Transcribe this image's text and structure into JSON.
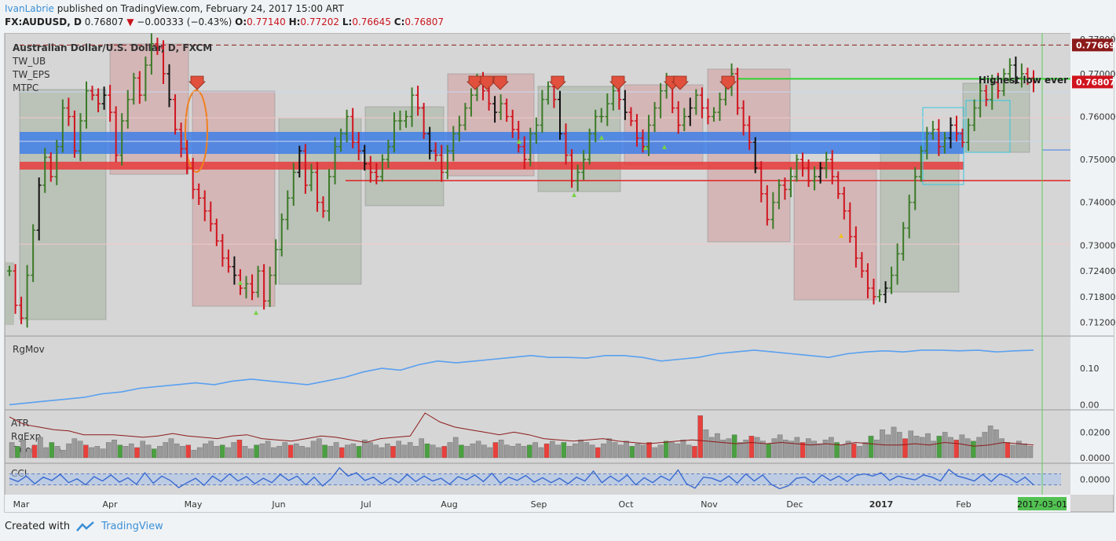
{
  "header": {
    "author": "IvanLabrie",
    "published_text": "published on TradingView.com, February 24, 2017 15:00 ART",
    "symbol": "FX:AUDUSD, D",
    "last": "0.76807",
    "change": "−0.00333 (−0.43%)",
    "ohlc": [
      {
        "label": "O:",
        "value": "0.77140"
      },
      {
        "label": "H:",
        "value": "0.77202"
      },
      {
        "label": "L:",
        "value": "0.76645"
      },
      {
        "label": "C:",
        "value": "0.76807"
      }
    ]
  },
  "footer": {
    "created_with": "Created with",
    "brand": "TradingView"
  },
  "colors": {
    "up": "#3c7a28",
    "down": "#d0141e",
    "dark": "#111111",
    "accent": "#3b8fd6",
    "line": "#5aa0f0"
  },
  "chart_data": [
    {
      "type": "line",
      "title": "Australian Dollar/U.S. Dollar, D, FXCM",
      "indicators": [
        "TW_UB",
        "TW_EPS",
        "MTPC"
      ],
      "annotation": "Highest low ever",
      "y_ticks": [
        "0.77800",
        "0.77000",
        "0.76000",
        "0.75000",
        "0.74000",
        "0.73000",
        "0.72400",
        "0.71800",
        "0.71200"
      ],
      "ylim": [
        0.709,
        0.7795
      ],
      "price_labels": [
        {
          "value": 0.77669,
          "text": "0.77669",
          "color": "#8c1a1a"
        },
        {
          "value": 0.76807,
          "text": "0.76807",
          "color": "#d0141e"
        }
      ],
      "x_labels": [
        "Mar",
        "Apr",
        "May",
        "Jun",
        "Jul",
        "Aug",
        "Sep",
        "Oct",
        "Nov",
        "Dec",
        "2017",
        "Feb"
      ],
      "cursor_date": "2017-03-01",
      "series": [
        {
          "values": [
            0.724,
            0.716,
            0.713,
            0.723,
            0.7335,
            0.744,
            0.7505,
            0.746,
            0.753,
            0.762,
            0.76,
            0.752,
            0.759,
            0.766,
            0.765,
            0.763,
            0.765,
            0.761,
            0.751,
            0.759,
            0.764,
            0.769,
            0.765,
            0.772,
            0.777,
            0.776,
            0.77,
            0.764,
            0.757,
            0.7525,
            0.748,
            0.743,
            0.741,
            0.738,
            0.735,
            0.731,
            0.727,
            0.725,
            0.723,
            0.72,
            0.721,
            0.719,
            0.724,
            0.717,
            0.723,
            0.729,
            0.736,
            0.741,
            0.747,
            0.752,
            0.744,
            0.747,
            0.74,
            0.738,
            0.746,
            0.753,
            0.756,
            0.76,
            0.754,
            0.752,
            0.749,
            0.747,
            0.746,
            0.75,
            0.753,
            0.759,
            0.759,
            0.76,
            0.765,
            0.762,
            0.756,
            0.752,
            0.751,
            0.747,
            0.752,
            0.756,
            0.758,
            0.762,
            0.765,
            0.768,
            0.766,
            0.763,
            0.761,
            0.763,
            0.76,
            0.757,
            0.753,
            0.75,
            0.756,
            0.758,
            0.764,
            0.767,
            0.764,
            0.756,
            0.751,
            0.745,
            0.747,
            0.75,
            0.756,
            0.76,
            0.76,
            0.763,
            0.766,
            0.764,
            0.761,
            0.759,
            0.755,
            0.753,
            0.758,
            0.762,
            0.766,
            0.768,
            0.762,
            0.758,
            0.76,
            0.762,
            0.765,
            0.762,
            0.76,
            0.761,
            0.764,
            0.767,
            0.77,
            0.762,
            0.758,
            0.754,
            0.748,
            0.742,
            0.736,
            0.74,
            0.744,
            0.743,
            0.746,
            0.75,
            0.748,
            0.745,
            0.746,
            0.748,
            0.75,
            0.746,
            0.742,
            0.738,
            0.732,
            0.727,
            0.724,
            0.72,
            0.718,
            0.7185,
            0.72,
            0.723,
            0.728,
            0.734,
            0.74,
            0.746,
            0.752,
            0.756,
            0.757,
            0.753,
            0.755,
            0.758,
            0.756,
            0.754,
            0.758,
            0.762,
            0.766,
            0.764,
            0.768,
            0.766,
            0.77,
            0.772,
            0.769,
            0.77,
            0.769,
            0.7681
          ]
        }
      ]
    },
    {
      "type": "line",
      "title": "RgMov",
      "y_ticks": [
        "0.10",
        "0.00"
      ],
      "ylim": [
        -0.01,
        0.18
      ],
      "series": [
        {
          "values": [
            0.0,
            0.005,
            0.01,
            0.015,
            0.02,
            0.03,
            0.035,
            0.045,
            0.05,
            0.055,
            0.06,
            0.055,
            0.065,
            0.07,
            0.065,
            0.06,
            0.055,
            0.065,
            0.075,
            0.09,
            0.1,
            0.095,
            0.11,
            0.12,
            0.115,
            0.12,
            0.125,
            0.13,
            0.135,
            0.13,
            0.13,
            0.128,
            0.135,
            0.135,
            0.13,
            0.12,
            0.125,
            0.13,
            0.14,
            0.145,
            0.15,
            0.145,
            0.14,
            0.135,
            0.13,
            0.14,
            0.145,
            0.148,
            0.145,
            0.15,
            0.15,
            0.148,
            0.15,
            0.145,
            0.148,
            0.15
          ]
        }
      ]
    },
    {
      "type": "bar",
      "title": "ATR",
      "indicators": [
        "RgExp",
        "TrueRange"
      ],
      "y_ticks": [
        "0.0200",
        "0.0000"
      ],
      "ylim": [
        0,
        0.035
      ],
      "values": [
        0.012,
        0.009,
        0.014,
        0.007,
        0.01,
        0.016,
        0.008,
        0.012,
        0.009,
        0.006,
        0.011,
        0.015,
        0.013,
        0.01,
        0.008,
        0.009,
        0.007,
        0.012,
        0.014,
        0.01,
        0.009,
        0.011,
        0.008,
        0.013,
        0.01,
        0.007,
        0.009,
        0.012,
        0.015,
        0.011,
        0.009,
        0.01,
        0.006,
        0.008,
        0.011,
        0.013,
        0.009,
        0.01,
        0.008,
        0.012,
        0.014,
        0.009,
        0.007,
        0.01,
        0.011,
        0.013,
        0.008,
        0.009,
        0.012,
        0.01,
        0.011,
        0.009,
        0.008,
        0.013,
        0.015,
        0.01,
        0.009,
        0.012,
        0.008,
        0.01,
        0.011,
        0.009,
        0.014,
        0.012,
        0.01,
        0.008,
        0.011,
        0.009,
        0.013,
        0.01,
        0.012,
        0.009,
        0.015,
        0.011,
        0.01,
        0.008,
        0.009,
        0.012,
        0.016,
        0.01,
        0.009,
        0.011,
        0.013,
        0.01,
        0.008,
        0.012,
        0.014,
        0.01,
        0.009,
        0.011,
        0.009,
        0.01,
        0.012,
        0.008,
        0.011,
        0.013,
        0.01,
        0.012,
        0.009,
        0.011,
        0.014,
        0.012,
        0.01,
        0.008,
        0.011,
        0.015,
        0.012,
        0.01,
        0.013,
        0.009,
        0.011,
        0.01,
        0.012,
        0.008,
        0.01,
        0.013,
        0.012,
        0.011,
        0.014,
        0.01,
        0.009,
        0.033,
        0.022,
        0.016,
        0.019,
        0.014,
        0.015,
        0.018,
        0.012,
        0.014,
        0.017,
        0.016,
        0.013,
        0.011,
        0.015,
        0.018,
        0.014,
        0.013,
        0.016,
        0.012,
        0.015,
        0.013,
        0.011,
        0.014,
        0.016,
        0.012,
        0.01,
        0.013,
        0.011,
        0.009,
        0.012,
        0.017,
        0.014,
        0.022,
        0.018,
        0.024,
        0.02,
        0.015,
        0.021,
        0.017,
        0.016,
        0.019,
        0.013,
        0.017,
        0.02,
        0.016,
        0.014,
        0.018,
        0.015,
        0.013,
        0.016,
        0.02,
        0.025,
        0.022,
        0.015,
        0.012,
        0.01,
        0.013,
        0.011,
        0.009
      ],
      "rgexp": [
        0.032,
        0.026,
        0.024,
        0.022,
        0.021,
        0.018,
        0.018,
        0.018,
        0.017,
        0.016,
        0.017,
        0.019,
        0.017,
        0.016,
        0.015,
        0.017,
        0.018,
        0.015,
        0.014,
        0.013,
        0.015,
        0.017,
        0.016,
        0.014,
        0.012,
        0.015,
        0.016,
        0.017,
        0.035,
        0.028,
        0.024,
        0.022,
        0.02,
        0.018,
        0.02,
        0.018,
        0.015,
        0.014,
        0.013,
        0.014,
        0.015,
        0.013,
        0.012,
        0.011,
        0.012,
        0.013,
        0.014,
        0.013,
        0.012,
        0.011,
        0.012,
        0.011,
        0.012,
        0.011,
        0.01,
        0.011,
        0.01,
        0.012,
        0.011,
        0.01,
        0.01,
        0.011,
        0.01,
        0.012,
        0.011,
        0.009,
        0.01,
        0.012,
        0.011,
        0.01
      ]
    },
    {
      "type": "line",
      "title": "CCI",
      "y_ticks": [
        "0.0000"
      ],
      "ylim": [
        -250,
        250
      ],
      "series": [
        {
          "values": [
            20,
            -40,
            60,
            -80,
            40,
            -20,
            90,
            -60,
            10,
            -100,
            50,
            -30,
            80,
            -50,
            30,
            -90,
            120,
            -70,
            60,
            -20,
            -150,
            -60,
            20,
            -110,
            60,
            -40,
            100,
            -30,
            50,
            -80,
            20,
            -60,
            90,
            -20,
            60,
            -100,
            40,
            -120,
            10,
            210,
            60,
            120,
            -20,
            40,
            -80,
            30,
            -60,
            90,
            -40,
            60,
            -30,
            20,
            -90,
            50,
            -10,
            80,
            -40,
            110,
            -70,
            40,
            -20,
            70,
            -50,
            30,
            -60,
            20,
            -80,
            40,
            -30,
            150,
            -60,
            60,
            -40,
            80,
            -100,
            30,
            -60,
            60,
            -20,
            170,
            -80,
            -160,
            40,
            20,
            -40,
            60,
            -70,
            100,
            -30,
            80,
            -90,
            -170,
            -120,
            20,
            40,
            -60,
            80,
            -20,
            60,
            -40,
            70,
            100,
            60,
            120,
            -20,
            60,
            20,
            -10,
            80,
            40,
            -30,
            180,
            60,
            20,
            -30,
            90,
            -40,
            100,
            40,
            -60,
            40,
            -100
          ]
        }
      ]
    }
  ]
}
